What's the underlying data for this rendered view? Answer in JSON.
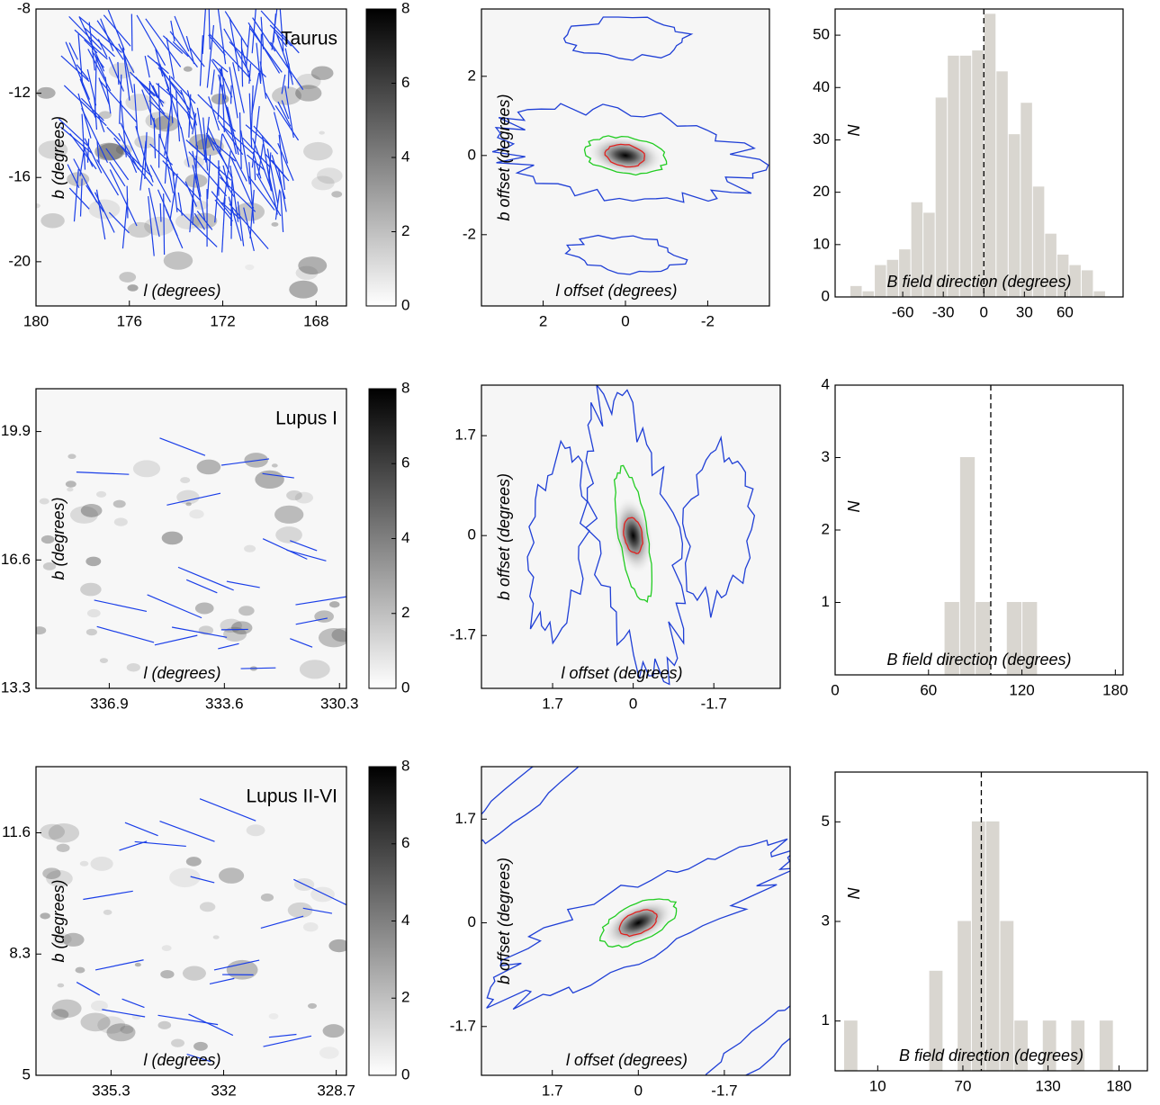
{
  "chart_data": [
    {
      "type": "image",
      "title": "Taurus",
      "xlabel": "l (degrees)",
      "ylabel": "b (degrees)",
      "xlim": [
        180,
        166.7
      ],
      "xticks": [
        180,
        176,
        172,
        168
      ],
      "ylim": [
        -22.1,
        -8
      ],
      "yticks": [
        -8,
        -12,
        -16,
        -20
      ]
    },
    {
      "type": "colorbar",
      "ylim": [
        0,
        8
      ],
      "yticks": [
        0,
        2,
        4,
        6,
        8
      ]
    },
    {
      "type": "contour",
      "xlabel": "l offset (degrees)",
      "ylabel": "b offset (degrees)",
      "xlim": [
        3.5,
        -3.5
      ],
      "xticks": [
        2,
        0,
        -2
      ],
      "ylim": [
        -3.8,
        3.7
      ],
      "yticks": [
        2,
        0,
        -2
      ]
    },
    {
      "type": "histogram",
      "xlabel": "B field direction (degrees)",
      "ylabel": "N",
      "bins": [
        -99,
        -90,
        -81,
        -72,
        -63,
        -54,
        -45,
        -36,
        -27,
        -18,
        -9,
        0,
        9,
        18,
        27,
        36,
        45,
        54,
        63,
        72,
        81,
        90
      ],
      "values": [
        2,
        1,
        6,
        7,
        9,
        18,
        16,
        38,
        46,
        46,
        47,
        54,
        43,
        31,
        37,
        21,
        12,
        8,
        6,
        5,
        1
      ],
      "color": "#d9d6d0",
      "reference_x": 0,
      "xlim": [
        -110,
        103
      ],
      "xticks": [
        -60,
        -30,
        0,
        30,
        60
      ],
      "ylim": [
        0,
        55
      ],
      "yticks": [
        0,
        10,
        20,
        30,
        40,
        50
      ]
    },
    {
      "type": "image",
      "title": "Lupus I",
      "xlabel": "l (degrees)",
      "ylabel": "b (degrees)",
      "xlim": [
        339,
        330.1
      ],
      "xticks": [
        336.9,
        333.6,
        330.3
      ],
      "ylim": [
        13.3,
        21
      ],
      "yticks": [
        19.9,
        16.6,
        13.3
      ]
    },
    {
      "type": "colorbar",
      "ylim": [
        0,
        8
      ],
      "yticks": [
        0,
        2,
        4,
        6,
        8
      ]
    },
    {
      "type": "contour",
      "xlabel": "l offset (degrees)",
      "ylabel": "b offset (degrees)",
      "xlim": [
        3.2,
        -3.1
      ],
      "xticks": [
        1.7,
        0,
        -1.7
      ],
      "ylim": [
        -2.6,
        2.56
      ],
      "yticks": [
        1.7,
        0,
        -1.7
      ]
    },
    {
      "type": "histogram",
      "xlabel": "B field direction (degrees)",
      "ylabel": "N",
      "bins": [
        0,
        10,
        20,
        30,
        40,
        50,
        60,
        70,
        80,
        90,
        100,
        110,
        120,
        130,
        140,
        150,
        160,
        170,
        180,
        190
      ],
      "values": [
        0,
        0,
        0,
        0,
        0,
        0,
        0,
        1,
        3,
        1,
        0,
        1,
        1,
        0,
        0,
        0,
        0,
        0,
        0
      ],
      "color": "#d9d6d0",
      "reference_x": 100,
      "xlim": [
        0,
        185
      ],
      "xticks": [
        0,
        60,
        120,
        180
      ],
      "ylim": [
        0,
        4
      ],
      "yticks": [
        1,
        2,
        3,
        4
      ]
    },
    {
      "type": "image",
      "title": "Lupus II-VI",
      "xlabel": "l (degrees)",
      "ylabel": "b (degrees)",
      "xlim": [
        337.5,
        328.4
      ],
      "xticks": [
        335.3,
        332,
        328.7
      ],
      "ylim": [
        5,
        13.4
      ],
      "yticks": [
        11.6,
        8.3,
        5
      ]
    },
    {
      "type": "colorbar",
      "ylim": [
        0,
        8
      ],
      "yticks": [
        0,
        2,
        4,
        6,
        8
      ]
    },
    {
      "type": "contour",
      "xlabel": "l offset (degrees)",
      "ylabel": "b offset (degrees)",
      "xlim": [
        3.1,
        -3.0
      ],
      "xticks": [
        1.7,
        0,
        -1.7
      ],
      "ylim": [
        -2.5,
        2.56
      ],
      "yticks": [
        1.7,
        0,
        -1.7
      ]
    },
    {
      "type": "histogram",
      "xlabel": "B field direction (degrees)",
      "ylabel": "N",
      "bins": [
        -14,
        -4,
        6,
        16,
        26,
        36,
        46,
        56,
        66,
        76,
        86,
        96,
        106,
        116,
        126,
        136,
        146,
        156,
        166,
        176
      ],
      "values": [
        1,
        0,
        0,
        0,
        0,
        0,
        2,
        0,
        3,
        5,
        5,
        3,
        1,
        0,
        1,
        0,
        1,
        0,
        1
      ],
      "color": "#d9d6d0",
      "reference_x": 83,
      "xlim": [
        -20,
        200
      ],
      "xticks": [
        10,
        70,
        130,
        180
      ],
      "ylim": [
        0,
        6
      ],
      "yticks": [
        1,
        3,
        5
      ]
    }
  ]
}
